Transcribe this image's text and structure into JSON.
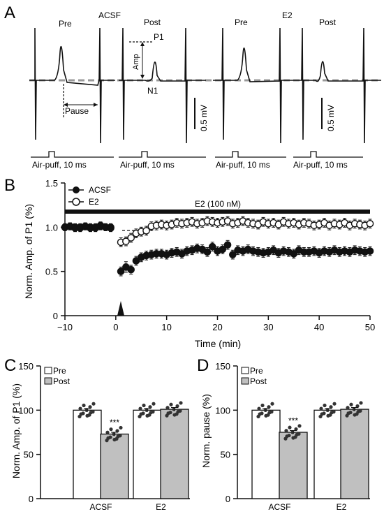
{
  "panel_a": {
    "letter": "A",
    "condition_labels": [
      "ACSF",
      "E2"
    ],
    "trace_labels": [
      "Pre",
      "Post",
      "Pre",
      "Post"
    ],
    "annotations": {
      "p1": "P1",
      "amp": "Amp",
      "n1": "N1",
      "pause": "Pause"
    },
    "scale_bars": [
      "0.5 mV",
      "0.5 mV"
    ],
    "stimulus_labels": [
      "Air-puff, 10 ms",
      "Air-puff, 10 ms",
      "Air-puff, 10 ms",
      "Air-puff, 10 ms"
    ]
  },
  "chart_data": [
    {
      "panel": "B",
      "type": "scatter",
      "xlabel": "Time (min)",
      "ylabel": "Norm. Amp. of P1 (%)",
      "xlim": [
        -10,
        50
      ],
      "ylim": [
        0,
        1.5
      ],
      "xticks": [
        "−10",
        "0",
        "10",
        "20",
        "30",
        "40",
        "50"
      ],
      "yticks": [
        "0",
        "0.5",
        "1.0",
        "1.5"
      ],
      "drug_bar_label": "E2 (100 nM)",
      "legend_position": "top-left",
      "series": [
        {
          "name": "ACSF",
          "marker": "filled-circle",
          "color": "#111111",
          "x": [
            -10,
            -9,
            -8,
            -7,
            -6,
            -5,
            -4,
            -3,
            -2,
            -1,
            1,
            2,
            3,
            4,
            5,
            6,
            7,
            8,
            9,
            10,
            11,
            12,
            13,
            14,
            15,
            16,
            17,
            18,
            19,
            20,
            21,
            22,
            23,
            24,
            25,
            26,
            27,
            28,
            29,
            30,
            31,
            32,
            33,
            34,
            35,
            36,
            37,
            38,
            39,
            40,
            41,
            42,
            43,
            44,
            45,
            46,
            47,
            48,
            49,
            50
          ],
          "y": [
            1.0,
            1.01,
            0.99,
            1.0,
            1.01,
            0.99,
            1.0,
            1.02,
            1.0,
            0.99,
            0.5,
            0.55,
            0.52,
            0.62,
            0.66,
            0.68,
            0.69,
            0.7,
            0.7,
            0.69,
            0.71,
            0.72,
            0.7,
            0.73,
            0.74,
            0.76,
            0.75,
            0.72,
            0.78,
            0.73,
            0.75,
            0.8,
            0.69,
            0.74,
            0.73,
            0.75,
            0.73,
            0.72,
            0.71,
            0.72,
            0.74,
            0.71,
            0.73,
            0.72,
            0.7,
            0.74,
            0.72,
            0.72,
            0.73,
            0.71,
            0.73,
            0.72,
            0.74,
            0.72,
            0.73,
            0.72,
            0.74,
            0.73,
            0.72,
            0.73
          ],
          "error": [
            0.04,
            0.04,
            0.04,
            0.04,
            0.04,
            0.04,
            0.04,
            0.04,
            0.04,
            0.04,
            0.05,
            0.06,
            0.05,
            0.05,
            0.05,
            0.05,
            0.05,
            0.05,
            0.05,
            0.05,
            0.05,
            0.05,
            0.05,
            0.05,
            0.05,
            0.05,
            0.05,
            0.05,
            0.05,
            0.05,
            0.05,
            0.05,
            0.05,
            0.05,
            0.05,
            0.05,
            0.05,
            0.05,
            0.05,
            0.05,
            0.05,
            0.05,
            0.05,
            0.05,
            0.05,
            0.05,
            0.05,
            0.05,
            0.05,
            0.05,
            0.05,
            0.05,
            0.05,
            0.05,
            0.05,
            0.05,
            0.05,
            0.05,
            0.05,
            0.05
          ]
        },
        {
          "name": "E2",
          "marker": "open-circle",
          "color": "#111111",
          "x": [
            -10,
            -9,
            -8,
            -7,
            -6,
            -5,
            -4,
            -3,
            -2,
            -1,
            1,
            2,
            3,
            4,
            5,
            6,
            7,
            8,
            9,
            10,
            11,
            12,
            13,
            14,
            15,
            16,
            17,
            18,
            19,
            20,
            21,
            22,
            23,
            24,
            25,
            26,
            27,
            28,
            29,
            30,
            31,
            32,
            33,
            34,
            35,
            36,
            37,
            38,
            39,
            40,
            41,
            42,
            43,
            44,
            45,
            46,
            47,
            48,
            49,
            50
          ],
          "y": [
            1.0,
            1.01,
            1.0,
            0.99,
            1.01,
            1.0,
            0.99,
            1.01,
            1.0,
            1.0,
            0.83,
            0.84,
            0.88,
            0.93,
            0.95,
            0.96,
            1.01,
            1.02,
            1.03,
            1.02,
            1.03,
            1.05,
            1.04,
            1.05,
            1.06,
            1.04,
            1.05,
            1.07,
            1.06,
            1.05,
            1.06,
            1.07,
            1.04,
            1.05,
            1.07,
            1.05,
            1.04,
            1.03,
            1.06,
            1.04,
            1.05,
            1.03,
            1.06,
            1.04,
            1.05,
            1.03,
            1.05,
            1.04,
            1.02,
            1.03,
            1.05,
            1.02,
            1.04,
            1.03,
            1.05,
            1.02,
            1.04,
            1.03,
            1.02,
            1.04
          ],
          "error": [
            0.04,
            0.04,
            0.04,
            0.04,
            0.04,
            0.04,
            0.04,
            0.04,
            0.04,
            0.04,
            0.05,
            0.05,
            0.05,
            0.05,
            0.05,
            0.05,
            0.05,
            0.05,
            0.05,
            0.05,
            0.05,
            0.05,
            0.05,
            0.05,
            0.05,
            0.05,
            0.05,
            0.05,
            0.05,
            0.05,
            0.05,
            0.05,
            0.05,
            0.05,
            0.05,
            0.05,
            0.05,
            0.05,
            0.05,
            0.05,
            0.05,
            0.05,
            0.05,
            0.05,
            0.05,
            0.05,
            0.05,
            0.05,
            0.05,
            0.05,
            0.05,
            0.05,
            0.05,
            0.05,
            0.05,
            0.05,
            0.05,
            0.05,
            0.05,
            0.05
          ]
        }
      ]
    },
    {
      "panel": "C",
      "type": "bar",
      "ylabel": "Norm. Amp. of P1 (%)",
      "ylim": [
        0,
        150
      ],
      "yticks": [
        "0",
        "50",
        "100",
        "150"
      ],
      "categories": [
        "ACSF",
        "E2"
      ],
      "legend_position": "top-left",
      "series": [
        {
          "name": "Pre",
          "color": "#ffffff",
          "values": [
            100,
            100
          ],
          "error": [
            2,
            2
          ]
        },
        {
          "name": "Post",
          "color": "#c0c0c0",
          "values": [
            73,
            101
          ],
          "error": [
            2,
            2
          ]
        }
      ],
      "significance": [
        {
          "category": "ACSF",
          "series": "Post",
          "label": "***"
        }
      ]
    },
    {
      "panel": "D",
      "type": "bar",
      "ylabel": "Norm. pause (%)",
      "ylim": [
        0,
        150
      ],
      "yticks": [
        "0",
        "50",
        "100",
        "150"
      ],
      "categories": [
        "ACSF",
        "E2"
      ],
      "legend_position": "top-left",
      "series": [
        {
          "name": "Pre",
          "color": "#ffffff",
          "values": [
            100,
            100
          ],
          "error": [
            2,
            2
          ]
        },
        {
          "name": "Post",
          "color": "#c0c0c0",
          "values": [
            75,
            101
          ],
          "error": [
            2,
            2
          ]
        }
      ],
      "significance": [
        {
          "category": "ACSF",
          "series": "Post",
          "label": "***"
        }
      ]
    }
  ]
}
